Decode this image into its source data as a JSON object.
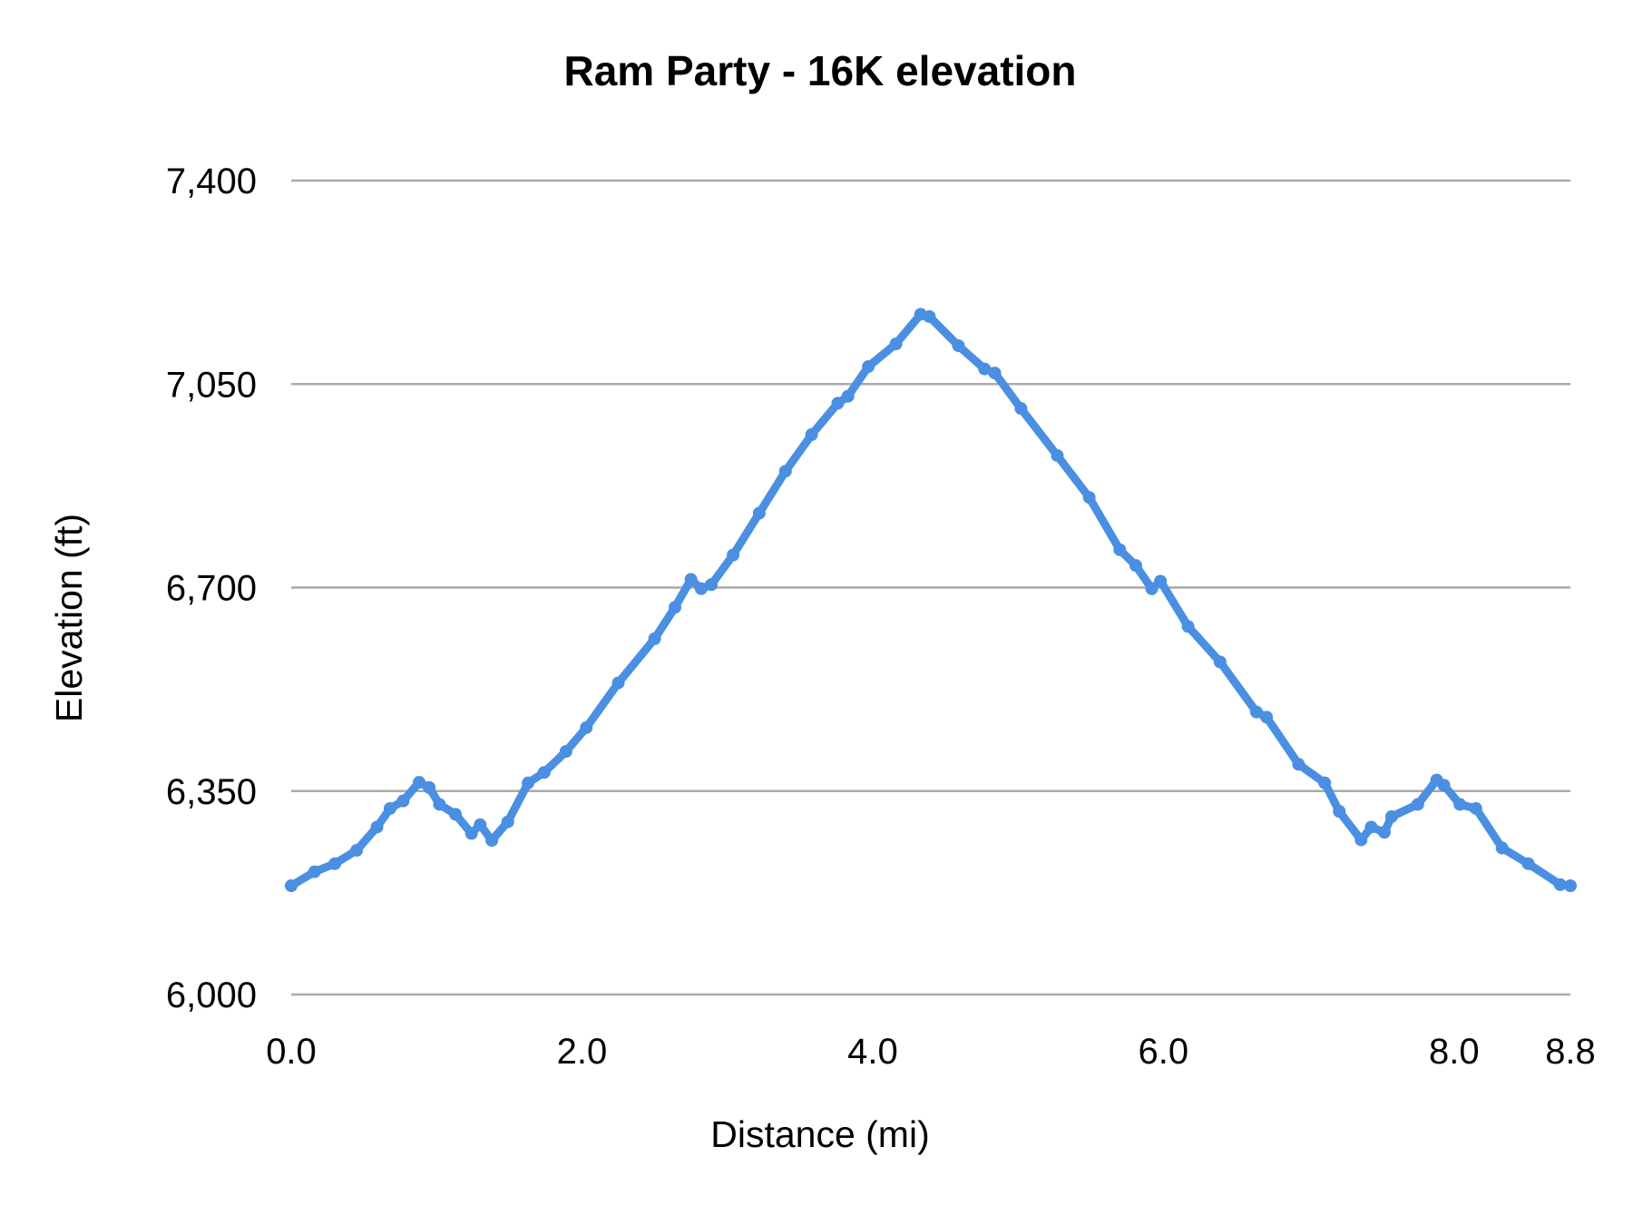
{
  "chart_data": {
    "type": "line",
    "title": "Ram Party - 16K elevation",
    "xlabel": "Distance (mi)",
    "ylabel": "Elevation (ft)",
    "xlim": [
      0,
      8.8
    ],
    "ylim": [
      6000,
      7400
    ],
    "x_ticks": [
      0.0,
      2.0,
      4.0,
      6.0,
      8.0,
      8.8
    ],
    "x_tick_labels": [
      "0.0",
      "2.0",
      "4.0",
      "6.0",
      "8.0",
      "8.8"
    ],
    "y_ticks": [
      6000,
      6350,
      6700,
      7050,
      7400
    ],
    "y_tick_labels": [
      "6,000",
      "6,350",
      "6,700",
      "7,050",
      "7,400"
    ],
    "grid": "horizontal",
    "legend": "none",
    "colors": {
      "series": "#4a8fe2",
      "grid": "#aaaaaa"
    },
    "series": [
      {
        "x": [
          0,
          0.16,
          0.3,
          0.45,
          0.59,
          0.68,
          0.77,
          0.88,
          0.95,
          1.02,
          1.13,
          1.24,
          1.3,
          1.38,
          1.49,
          1.63,
          1.74,
          1.89,
          2.03,
          2.25,
          2.5,
          2.64,
          2.75,
          2.82,
          2.89,
          3.04,
          3.22,
          3.4,
          3.58,
          3.76,
          3.83,
          3.97,
          4.16,
          4.33,
          4.39,
          4.59,
          4.77,
          4.84,
          5.02,
          5.27,
          5.49,
          5.7,
          5.81,
          5.92,
          5.98,
          6.17,
          6.39,
          6.64,
          6.71,
          6.93,
          7.11,
          7.21,
          7.36,
          7.43,
          7.52,
          7.57,
          7.75,
          7.88,
          7.93,
          8.04,
          8.15,
          8.33,
          8.51,
          8.73,
          8.8
        ],
        "y": [
          6187,
          6211,
          6225,
          6248,
          6288,
          6320,
          6333,
          6365,
          6356,
          6327,
          6310,
          6277,
          6292,
          6265,
          6297,
          6364,
          6382,
          6418,
          6459,
          6536,
          6612,
          6666,
          6714,
          6698,
          6705,
          6756,
          6828,
          6900,
          6963,
          7017,
          7029,
          7080,
          7119,
          7170,
          7166,
          7116,
          7076,
          7069,
          7008,
          6927,
          6855,
          6765,
          6738,
          6698,
          6711,
          6633,
          6572,
          6486,
          6477,
          6396,
          6364,
          6315,
          6266,
          6288,
          6279,
          6306,
          6327,
          6369,
          6360,
          6327,
          6320,
          6252,
          6225,
          6189,
          6187
        ]
      }
    ]
  }
}
